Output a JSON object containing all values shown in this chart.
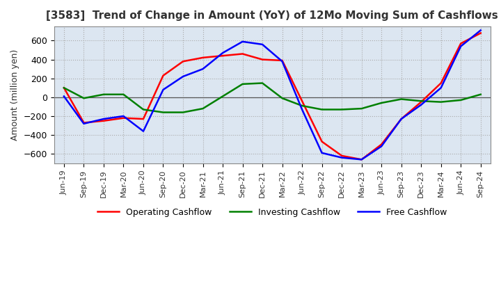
{
  "title": "[3583]  Trend of Change in Amount (YoY) of 12Mo Moving Sum of Cashflows",
  "ylabel": "Amount (million yen)",
  "x_labels": [
    "Jun-19",
    "Sep-19",
    "Dec-19",
    "Mar-20",
    "Jun-20",
    "Sep-20",
    "Dec-20",
    "Mar-21",
    "Jun-21",
    "Sep-21",
    "Dec-21",
    "Mar-22",
    "Jun-22",
    "Sep-22",
    "Dec-22",
    "Mar-23",
    "Jun-23",
    "Sep-23",
    "Dec-23",
    "Mar-24",
    "Jun-24",
    "Sep-24"
  ],
  "operating": [
    100,
    -270,
    -250,
    -220,
    -230,
    230,
    380,
    420,
    440,
    460,
    400,
    390,
    -40,
    -470,
    -620,
    -660,
    -500,
    -230,
    -50,
    150,
    570,
    680
  ],
  "investing": [
    100,
    -10,
    30,
    30,
    -130,
    -160,
    -160,
    -120,
    10,
    140,
    150,
    -10,
    -90,
    -130,
    -130,
    -120,
    -60,
    -20,
    -40,
    -50,
    -30,
    30
  ],
  "free": [
    10,
    -280,
    -230,
    -200,
    -360,
    80,
    220,
    300,
    470,
    590,
    560,
    380,
    -130,
    -590,
    -640,
    -660,
    -520,
    -230,
    -80,
    100,
    540,
    710
  ],
  "colors": {
    "operating": "#ff0000",
    "investing": "#008000",
    "free": "#0000ff"
  },
  "ylim": [
    -700,
    750
  ],
  "yticks": [
    -600,
    -400,
    -200,
    0,
    200,
    400,
    600
  ],
  "plot_bg_color": "#dce6f1",
  "fig_bg_color": "#ffffff",
  "grid_color": "#aaaaaa"
}
